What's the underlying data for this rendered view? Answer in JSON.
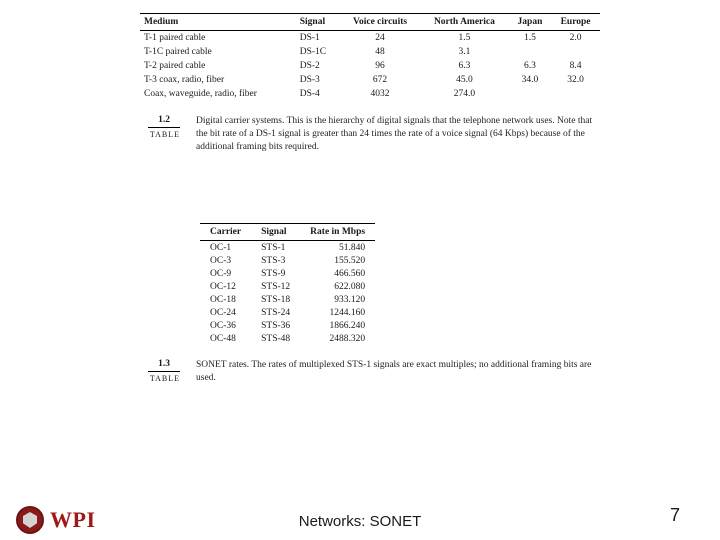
{
  "table1": {
    "headers": [
      "Medium",
      "Signal",
      "Voice circuits",
      "North America",
      "Japan",
      "Europe"
    ],
    "rows": [
      [
        "T-1 paired cable",
        "DS-1",
        "24",
        "1.5",
        "1.5",
        "2.0"
      ],
      [
        "T-1C paired cable",
        "DS-1C",
        "48",
        "3.1",
        "",
        ""
      ],
      [
        "T-2 paired cable",
        "DS-2",
        "96",
        "6.3",
        "6.3",
        "8.4"
      ],
      [
        "T-3 coax, radio, fiber",
        "DS-3",
        "672",
        "45.0",
        "34.0",
        "32.0"
      ],
      [
        "Coax, waveguide, radio, fiber",
        "DS-4",
        "4032",
        "274.0",
        "",
        ""
      ]
    ]
  },
  "caption1": {
    "num": "1.2",
    "word": "TABLE",
    "text": "Digital carrier systems. This is the hierarchy of digital signals that the telephone network uses. Note that the bit rate of a DS-1 signal is greater than 24 times the rate of a voice signal (64 Kbps) because of the additional framing bits required."
  },
  "table2": {
    "headers": [
      "Carrier",
      "Signal",
      "Rate in Mbps"
    ],
    "rows": [
      [
        "OC-1",
        "STS-1",
        "51.840"
      ],
      [
        "OC-3",
        "STS-3",
        "155.520"
      ],
      [
        "OC-9",
        "STS-9",
        "466.560"
      ],
      [
        "OC-12",
        "STS-12",
        "622.080"
      ],
      [
        "OC-18",
        "STS-18",
        "933.120"
      ],
      [
        "OC-24",
        "STS-24",
        "1244.160"
      ],
      [
        "OC-36",
        "STS-36",
        "1866.240"
      ],
      [
        "OC-48",
        "STS-48",
        "2488.320"
      ]
    ]
  },
  "caption2": {
    "num": "1.3",
    "word": "TABLE",
    "text": "SONET rates. The rates of multiplexed STS-1 signals are exact multiples; no additional framing bits are used."
  },
  "footer": {
    "logo_text": "WPI",
    "title": "Networks: SONET",
    "page": "7"
  },
  "colors": {
    "text": "#1a1a1a",
    "wpi_red": "#a01818",
    "seal_bg": "#8a1a1a"
  }
}
